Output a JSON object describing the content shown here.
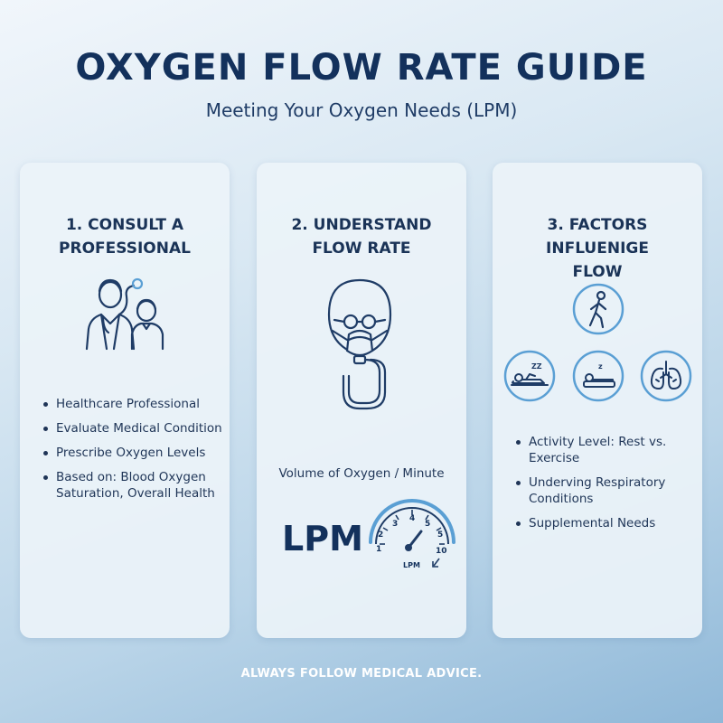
{
  "header": {
    "title": "OXYGEN FLOW RATE GUIDE",
    "subtitle": "Meeting Your Oxygen Needs (LPM)"
  },
  "cards": [
    {
      "title_line1": "1. CONSULT A",
      "title_line2": "PROFESSIONAL",
      "icon": "doctor-patient-icon",
      "bullets": [
        "Healthcare Professional",
        "Evaluate Medical Condition",
        "Prescribe Oxygen Levels",
        "Based on: Blood Oxygen Saturation, Overall Health"
      ]
    },
    {
      "title_line1": "2. UNDERSTAND",
      "title_line2": "FLOW RATE",
      "icon": "oxygen-mask-icon",
      "volume_label": "Volume of Oxygen / Minute",
      "lpm_label": "LPM",
      "gauge": {
        "ticks": [
          "1",
          "2",
          "3",
          "4",
          "5",
          "5",
          "10"
        ],
        "unit": "LPM"
      }
    },
    {
      "title_line1": "3. FACTORS INFLUENIGE",
      "title_line2": "FLOW",
      "icons": [
        "walking-person-icon",
        "resting-person-icon",
        "sleeping-person-icon",
        "lungs-icon"
      ],
      "sleep_z": "z",
      "sleep_zz": "ZZ",
      "bullets": [
        "Activity Level: Rest vs. Exercise",
        "Underving Respiratory Conditions",
        "Supplemental Needs"
      ]
    }
  ],
  "footer": {
    "text": "ALWAYS FOLLOW MEDICAL ADVICE."
  },
  "colors": {
    "navy": "#13315c",
    "icon_stroke": "#1f3c66",
    "accent_blue": "#5a9fd4"
  }
}
